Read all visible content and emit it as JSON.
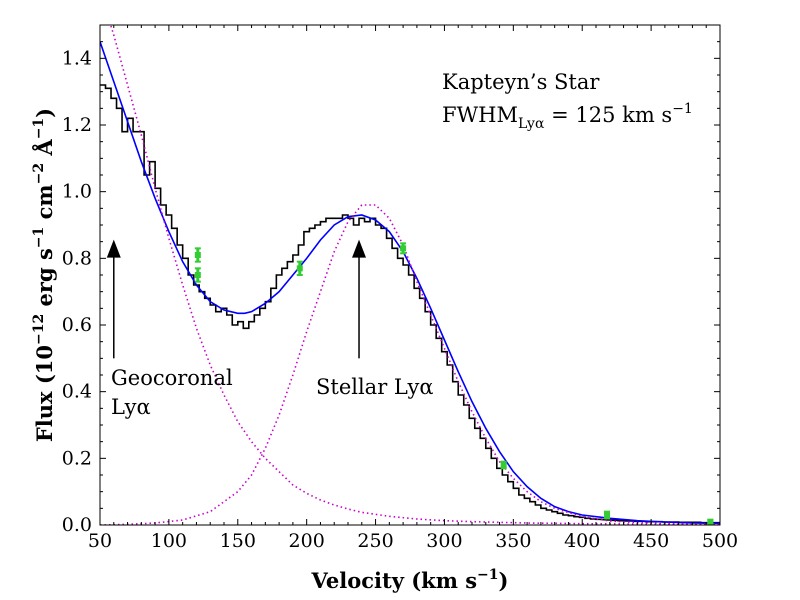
{
  "chart_data": {
    "type": "line",
    "xlabel": "Velocity (km s$^{-1}$)",
    "xlabel_parts": {
      "pre": "Velocity (km s",
      "sup": "−1",
      "post": ")"
    },
    "ylabel": "Flux (10$^{-12}$ erg s$^{-1}$ cm$^{-2}$ Å$^{-1}$)",
    "ylabel_parts": {
      "p1": "Flux (10",
      "s1": "−12",
      "p2": " erg s",
      "s2": "−1",
      "p3": " cm",
      "s3": "−2",
      "p4": " Å",
      "s4": "−1",
      "p5": ")"
    },
    "xlim": [
      50,
      500
    ],
    "ylim": [
      0.0,
      1.5
    ],
    "xticks": [
      "50",
      "100",
      "150",
      "200",
      "250",
      "300",
      "350",
      "400",
      "450",
      "500"
    ],
    "yticks": [
      "0.0",
      "0.2",
      "0.4",
      "0.6",
      "0.8",
      "1.0",
      "1.2",
      "1.4"
    ],
    "grid": false,
    "colors": {
      "data": "#000000",
      "fit": "#0000ff",
      "components": "#cc00cc",
      "points": "#33cc33"
    },
    "annotations": {
      "title_line1": "Kapteyn’s Star",
      "title_line2_pre": "FWHM",
      "title_line2_sub": "Lyα",
      "title_line2_post": " = 125 km s",
      "title_line2_sup": "−1",
      "geo_line1": "Geocoronal",
      "geo_line2": "Lyα",
      "stellar": "Stellar Lyα",
      "geo_arrow_x": 60,
      "geo_arrow_y": [
        0.5,
        0.85
      ],
      "stellar_arrow_x": 238,
      "stellar_arrow_y": [
        0.5,
        0.85
      ]
    },
    "series": [
      {
        "kind": "step",
        "x": [
          50,
          54,
          58,
          62,
          66,
          70,
          74,
          78,
          82,
          86,
          90,
          94,
          98,
          102,
          106,
          110,
          114,
          118,
          122,
          126,
          130,
          134,
          138,
          142,
          146,
          150,
          154,
          158,
          162,
          166,
          170,
          174,
          178,
          182,
          186,
          190,
          194,
          198,
          202,
          206,
          210,
          214,
          218,
          222,
          226,
          230,
          234,
          238,
          242,
          246,
          250,
          254,
          258,
          262,
          266,
          270,
          274,
          278,
          282,
          286,
          290,
          294,
          298,
          302,
          306,
          310,
          314,
          318,
          322,
          326,
          330,
          334,
          338,
          342,
          346,
          350,
          354,
          358,
          362,
          366,
          370,
          374,
          378,
          382,
          386,
          390,
          394,
          398,
          402,
          406,
          410,
          414,
          418,
          422,
          426,
          430,
          434,
          438,
          442,
          446,
          450,
          454,
          458,
          462,
          466,
          470,
          474,
          478,
          482,
          486,
          490,
          494,
          498,
          500
        ],
        "y": [
          1.32,
          1.31,
          1.28,
          1.25,
          1.18,
          1.22,
          1.18,
          1.18,
          1.05,
          1.09,
          1.01,
          0.96,
          0.93,
          0.89,
          0.84,
          0.8,
          0.75,
          0.72,
          0.7,
          0.68,
          0.66,
          0.64,
          0.65,
          0.63,
          0.6,
          0.61,
          0.59,
          0.61,
          0.63,
          0.65,
          0.67,
          0.71,
          0.75,
          0.77,
          0.79,
          0.81,
          0.84,
          0.88,
          0.89,
          0.9,
          0.91,
          0.92,
          0.92,
          0.92,
          0.93,
          0.92,
          0.9,
          0.92,
          0.91,
          0.92,
          0.9,
          0.89,
          0.86,
          0.83,
          0.8,
          0.78,
          0.75,
          0.71,
          0.68,
          0.64,
          0.6,
          0.56,
          0.52,
          0.48,
          0.43,
          0.39,
          0.36,
          0.32,
          0.29,
          0.26,
          0.23,
          0.2,
          0.17,
          0.15,
          0.13,
          0.11,
          0.09,
          0.08,
          0.07,
          0.06,
          0.05,
          0.045,
          0.04,
          0.035,
          0.03,
          0.028,
          0.025,
          0.023,
          0.02,
          0.018,
          0.017,
          0.016,
          0.015,
          0.014,
          0.013,
          0.012,
          0.012,
          0.011,
          0.011,
          0.01,
          0.01,
          0.01,
          0.009,
          0.009,
          0.009,
          0.008,
          0.008,
          0.008,
          0.008,
          0.007,
          0.007,
          0.007,
          0.007,
          0.007
        ]
      },
      {
        "kind": "line",
        "x": [
          50,
          60,
          70,
          80,
          90,
          100,
          110,
          120,
          130,
          140,
          150,
          155,
          160,
          170,
          180,
          190,
          200,
          210,
          220,
          230,
          240,
          250,
          260,
          270,
          280,
          290,
          300,
          310,
          320,
          330,
          340,
          350,
          360,
          370,
          380,
          390,
          400,
          420,
          440,
          460,
          480,
          500
        ],
        "y": [
          1.45,
          1.33,
          1.21,
          1.09,
          0.98,
          0.88,
          0.79,
          0.72,
          0.67,
          0.645,
          0.635,
          0.635,
          0.64,
          0.665,
          0.7,
          0.75,
          0.8,
          0.855,
          0.9,
          0.925,
          0.93,
          0.915,
          0.88,
          0.82,
          0.74,
          0.65,
          0.555,
          0.46,
          0.37,
          0.29,
          0.22,
          0.16,
          0.115,
          0.08,
          0.055,
          0.04,
          0.03,
          0.02,
          0.013,
          0.009,
          0.006,
          0.005
        ]
      },
      {
        "kind": "dotted",
        "x": [
          50,
          60,
          70,
          80,
          90,
          100,
          110,
          120,
          130,
          140,
          150,
          160,
          170,
          180,
          190,
          200,
          210,
          220,
          230,
          240,
          260,
          280,
          300,
          320,
          340,
          360,
          380,
          400,
          430,
          460,
          500
        ],
        "y": [
          1.6,
          1.47,
          1.32,
          1.17,
          1.01,
          0.86,
          0.72,
          0.59,
          0.48,
          0.39,
          0.31,
          0.25,
          0.2,
          0.16,
          0.12,
          0.095,
          0.075,
          0.06,
          0.048,
          0.038,
          0.026,
          0.018,
          0.013,
          0.01,
          0.008,
          0.006,
          0.005,
          0.004,
          0.003,
          0.002,
          0.001
        ]
      },
      {
        "kind": "dotted",
        "x": [
          50,
          70,
          90,
          110,
          130,
          150,
          160,
          170,
          180,
          190,
          200,
          210,
          220,
          230,
          240,
          250,
          260,
          270,
          280,
          290,
          300,
          310,
          320,
          330,
          340,
          350,
          360,
          370,
          380,
          400,
          420,
          450,
          500
        ],
        "y": [
          0.0,
          0.002,
          0.006,
          0.015,
          0.04,
          0.1,
          0.15,
          0.23,
          0.33,
          0.45,
          0.58,
          0.7,
          0.82,
          0.91,
          0.96,
          0.96,
          0.92,
          0.84,
          0.73,
          0.63,
          0.53,
          0.43,
          0.34,
          0.26,
          0.19,
          0.14,
          0.1,
          0.07,
          0.05,
          0.025,
          0.012,
          0.005,
          0.001
        ]
      },
      {
        "kind": "errorbar",
        "x": [
          121,
          121,
          195,
          270,
          343,
          418,
          493
        ],
        "y": [
          0.81,
          0.75,
          0.77,
          0.83,
          0.18,
          0.03,
          0.01
        ],
        "err": [
          0.02,
          0.02,
          0.02,
          0.015,
          0.01,
          0.01,
          0.005
        ]
      }
    ]
  }
}
